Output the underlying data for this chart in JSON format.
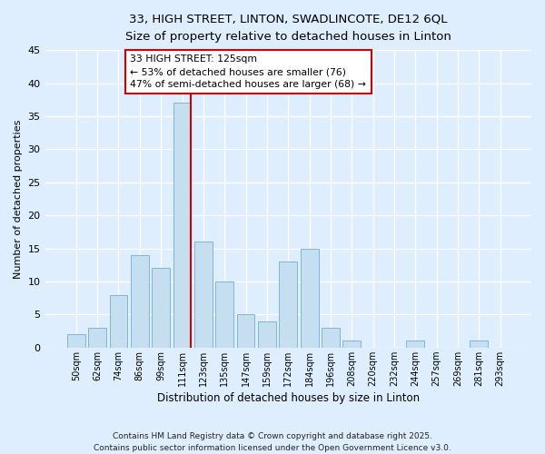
{
  "title_line1": "33, HIGH STREET, LINTON, SWADLINCOTE, DE12 6QL",
  "title_line2": "Size of property relative to detached houses in Linton",
  "xlabel": "Distribution of detached houses by size in Linton",
  "ylabel": "Number of detached properties",
  "bin_labels": [
    "50sqm",
    "62sqm",
    "74sqm",
    "86sqm",
    "99sqm",
    "111sqm",
    "123sqm",
    "135sqm",
    "147sqm",
    "159sqm",
    "172sqm",
    "184sqm",
    "196sqm",
    "208sqm",
    "220sqm",
    "232sqm",
    "244sqm",
    "257sqm",
    "269sqm",
    "281sqm",
    "293sqm"
  ],
  "bin_values": [
    2,
    3,
    8,
    14,
    12,
    37,
    16,
    10,
    5,
    4,
    13,
    15,
    3,
    1,
    0,
    0,
    1,
    0,
    0,
    1,
    0
  ],
  "bar_color": "#c6dff0",
  "bar_edge_color": "#7fb5d5",
  "vline_color": "#cc0000",
  "annotation_title": "33 HIGH STREET: 125sqm",
  "annotation_line1": "← 53% of detached houses are smaller (76)",
  "annotation_line2": "47% of semi-detached houses are larger (68) →",
  "annotation_box_color": "#ffffff",
  "annotation_box_edge": "#cc0000",
  "ylim": [
    0,
    45
  ],
  "yticks": [
    0,
    5,
    10,
    15,
    20,
    25,
    30,
    35,
    40,
    45
  ],
  "footer_line1": "Contains HM Land Registry data © Crown copyright and database right 2025.",
  "footer_line2": "Contains public sector information licensed under the Open Government Licence v3.0.",
  "bg_color": "#deeeff",
  "plot_bg_color": "#deeeff",
  "grid_color": "#ffffff",
  "title_fontsize": 9.5,
  "subtitle_fontsize": 8.5
}
